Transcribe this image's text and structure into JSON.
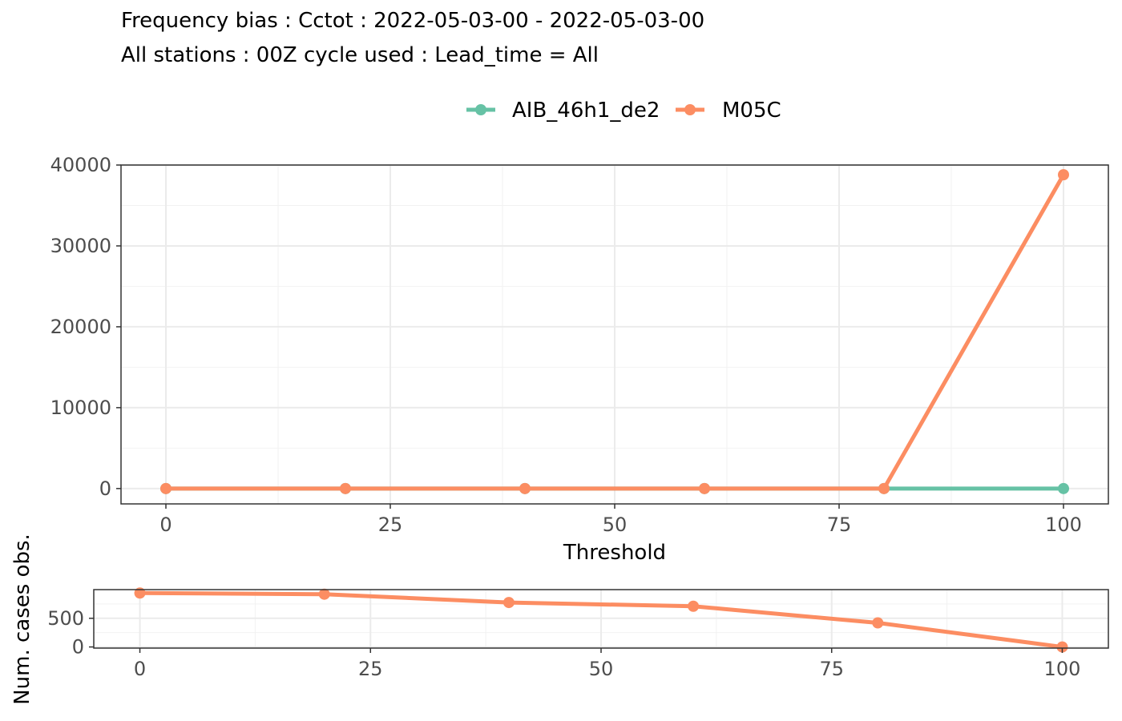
{
  "chart_data": [
    {
      "type": "line",
      "title": "Frequency bias : Cctot : 2022-05-03-00 - 2022-05-03-00",
      "subtitle": "All stations : 00Z cycle used : Lead_time = All",
      "xlabel": "Threshold",
      "ylabel": "",
      "x": [
        0,
        20,
        40,
        60,
        80,
        100
      ],
      "xlim": [
        -5,
        105
      ],
      "ylim": [
        -1900,
        40000
      ],
      "xticks": [
        0,
        25,
        50,
        75,
        100
      ],
      "yticks": [
        0,
        10000,
        20000,
        30000,
        40000
      ],
      "grid": true,
      "legend_position": "top",
      "series": [
        {
          "name": "AIB_46h1_de2",
          "color": "#66c2a5",
          "values": [
            0,
            0,
            0,
            0,
            0,
            0
          ]
        },
        {
          "name": "M05C",
          "color": "#fc8d62",
          "values": [
            0,
            0,
            0,
            0,
            0,
            38800
          ]
        }
      ]
    },
    {
      "type": "line",
      "title": "",
      "xlabel": "",
      "ylabel": "Num. cases obs.",
      "x": [
        0,
        20,
        40,
        60,
        80,
        100
      ],
      "xlim": [
        -5,
        105
      ],
      "ylim": [
        -20,
        1000
      ],
      "xticks": [
        0,
        25,
        50,
        75,
        100
      ],
      "yticks": [
        0,
        500
      ],
      "grid": true,
      "series": [
        {
          "name": "M05C",
          "color": "#fc8d62",
          "values": [
            940,
            920,
            775,
            710,
            420,
            0
          ]
        }
      ]
    }
  ]
}
